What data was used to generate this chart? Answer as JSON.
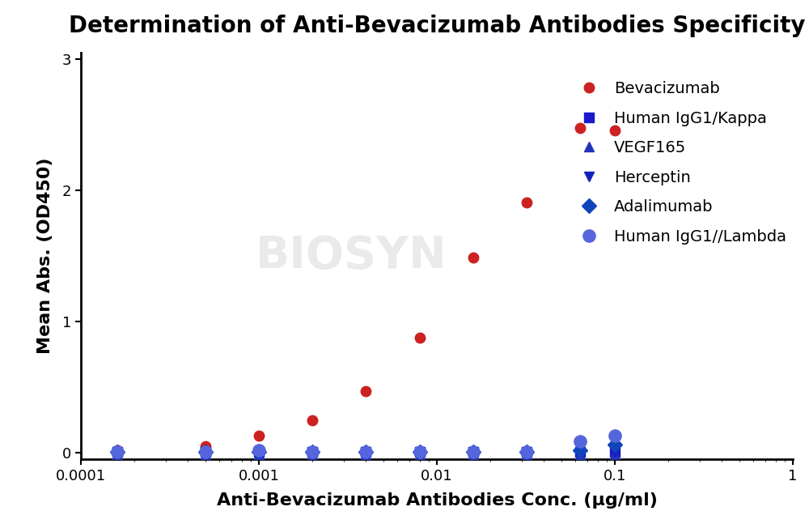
{
  "title": "Determination of Anti-Bevacizumab Antibodies Specificity",
  "xlabel": "Anti-Bevacizumab Antibodies Conc. (μg/ml)",
  "ylabel": "Mean Abs. (OD450)",
  "title_fontsize": 20,
  "axis_label_fontsize": 16,
  "tick_fontsize": 13,
  "background_color": "#ffffff",
  "bevacizumab": {
    "x": [
      0.00016,
      0.0005,
      0.001,
      0.002,
      0.004,
      0.008,
      0.016,
      0.032,
      0.064,
      0.1
    ],
    "y": [
      0.02,
      0.05,
      0.13,
      0.25,
      0.47,
      0.88,
      1.49,
      1.91,
      2.48,
      2.46
    ],
    "color": "#cc2222",
    "label": "Bevacizumab",
    "marker": "o",
    "markersize": 9
  },
  "human_igg1_kappa": {
    "x": [
      0.00016,
      0.0005,
      0.001,
      0.002,
      0.004,
      0.008,
      0.016,
      0.032,
      0.064,
      0.1
    ],
    "y": [
      0.005,
      0.005,
      0.005,
      0.005,
      0.005,
      0.005,
      0.005,
      0.005,
      0.005,
      0.005
    ],
    "color": "#1a1acc",
    "label": "Human IgG1/Kappa",
    "marker": "s",
    "markersize": 9
  },
  "vegf165": {
    "x": [
      0.00016,
      0.0005,
      0.001,
      0.002,
      0.004,
      0.008,
      0.016,
      0.032,
      0.064,
      0.1
    ],
    "y": [
      -0.01,
      -0.01,
      -0.01,
      -0.01,
      -0.01,
      -0.01,
      -0.01,
      -0.01,
      -0.01,
      -0.01
    ],
    "color": "#2233bb",
    "label": "VEGF165",
    "marker": "^",
    "markersize": 9
  },
  "herceptin": {
    "x": [
      0.00016,
      0.0005,
      0.001,
      0.002,
      0.004,
      0.008,
      0.016,
      0.032,
      0.064,
      0.1
    ],
    "y": [
      0.005,
      0.005,
      0.005,
      0.005,
      0.005,
      0.005,
      0.005,
      0.005,
      0.005,
      0.005
    ],
    "color": "#1122bb",
    "label": "Herceptin",
    "marker": "v",
    "markersize": 9
  },
  "adalimumab": {
    "x": [
      0.00016,
      0.0005,
      0.001,
      0.002,
      0.004,
      0.008,
      0.016,
      0.032,
      0.064,
      0.1
    ],
    "y": [
      0.005,
      0.005,
      0.005,
      0.005,
      0.005,
      0.005,
      0.005,
      0.005,
      0.02,
      0.06
    ],
    "color": "#1144bb",
    "label": "Adalimumab",
    "marker": "D",
    "markersize": 9
  },
  "human_igg1_lambda": {
    "x": [
      0.00016,
      0.0005,
      0.001,
      0.002,
      0.004,
      0.008,
      0.016,
      0.032,
      0.064,
      0.1
    ],
    "y": [
      0.005,
      0.005,
      0.02,
      0.005,
      0.005,
      0.005,
      0.005,
      0.005,
      0.09,
      0.13
    ],
    "color": "#5566dd",
    "label": "Human IgG1//Lambda",
    "marker": "o",
    "markersize": 11
  },
  "ylim": [
    -0.05,
    3.05
  ],
  "xlim": [
    0.0001,
    1.0
  ],
  "yticks": [
    0,
    1,
    2,
    3
  ],
  "xticks": [
    0.0001,
    0.001,
    0.01,
    0.1,
    1
  ],
  "xticklabels": [
    "0.0001",
    "0.001",
    "0.01",
    "0.1",
    "1"
  ]
}
